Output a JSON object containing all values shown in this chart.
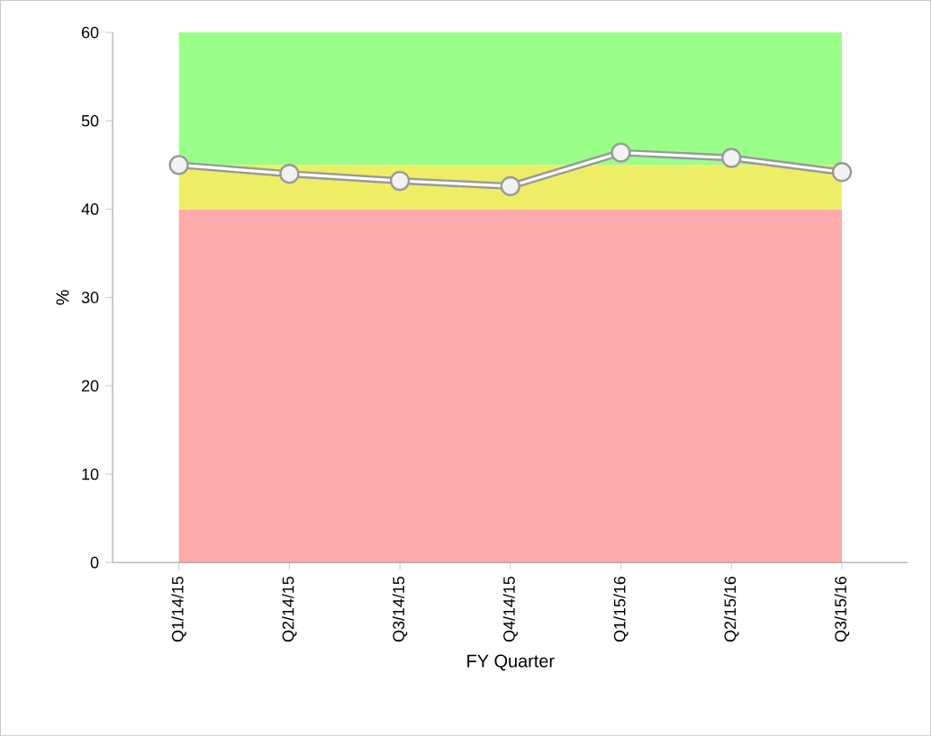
{
  "chart_data": {
    "type": "line",
    "xlabel": "FY Quarter",
    "ylabel": "%",
    "categories": [
      "Q1/14/15",
      "Q2/14/15",
      "Q3/14/15",
      "Q4/14/15",
      "Q1/15/16",
      "Q2/15/16",
      "Q3/15/16"
    ],
    "series": [
      {
        "color": "#999999",
        "values": [
          45.0,
          44.0,
          43.2,
          42.6,
          46.4,
          45.8,
          44.2
        ]
      }
    ],
    "ylim": [
      0,
      60
    ],
    "yticks": [
      0,
      10,
      20,
      30,
      40,
      50,
      60
    ],
    "marker": "circle",
    "line_style": "solid",
    "grid": false,
    "bands": [
      {
        "axis": "y",
        "from": 0,
        "to": 40,
        "color": "#ffaaaa"
      },
      {
        "axis": "y",
        "from": 40,
        "to": 45,
        "color": "#eeee66"
      },
      {
        "axis": "y",
        "from": 45,
        "to": 60,
        "color": "#99ff88"
      }
    ]
  }
}
